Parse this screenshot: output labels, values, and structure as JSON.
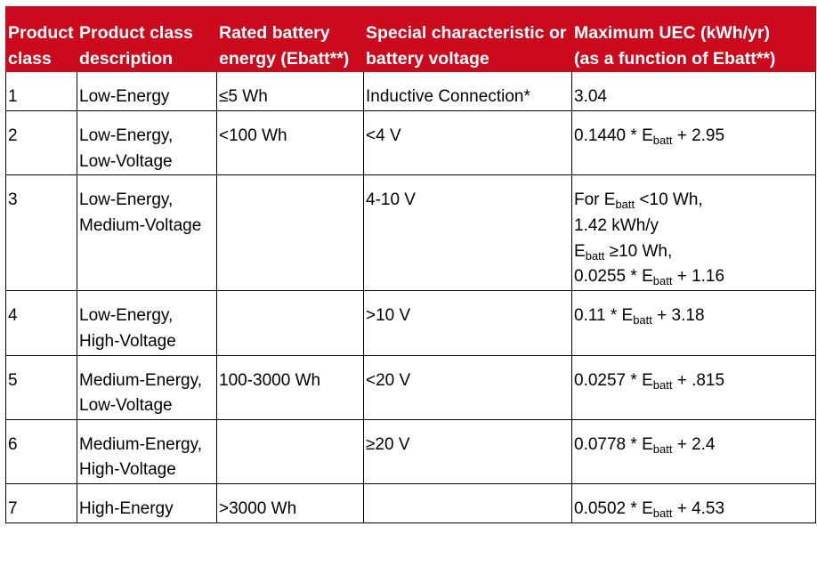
{
  "table": {
    "headers": {
      "product_class": [
        "Product",
        "class"
      ],
      "description": [
        "Product class",
        "description"
      ],
      "rated_energy": [
        "Rated battery",
        "energy (Ebatt**)"
      ],
      "special": [
        "Special characteristic or",
        "battery voltage"
      ],
      "max_uec": [
        "Maximum UEC (kWh/yr)",
        "(as a function of Ebatt**)"
      ]
    },
    "subscript": "batt",
    "rows": [
      {
        "product_class": "1",
        "description": [
          "Low-Energy"
        ],
        "rated_energy": "≤5 Wh",
        "special": "Inductive Connection*",
        "max_uec": "3.04"
      },
      {
        "product_class": "2",
        "description": [
          "Low-Energy,",
          "Low-Voltage"
        ],
        "rated_energy": "<100 Wh",
        "special": "<4 V",
        "max_uec": {
          "prefix": "0.1440 * E",
          "suffix": " + 2.95"
        }
      },
      {
        "product_class": "3",
        "description": [
          "Low-Energy,",
          "Medium-Voltage"
        ],
        "rated_energy": "",
        "special": "4-10 V",
        "max_uec": {
          "line1_prefix": "For E",
          "line1_suffix": " <10 Wh,",
          "line2": "1.42 kWh/y",
          "line3_prefix": "E",
          "line3_suffix": " ≥10 Wh,",
          "line4_prefix": "0.0255 * E",
          "line4_suffix": " + 1.16"
        }
      },
      {
        "product_class": "4",
        "description": [
          "Low-Energy,",
          "High-Voltage"
        ],
        "rated_energy": "",
        "special": ">10 V",
        "max_uec": {
          "prefix": "0.11 * E",
          "suffix": " + 3.18"
        }
      },
      {
        "product_class": "5",
        "description": [
          "Medium-Energy,",
          "Low-Voltage"
        ],
        "rated_energy": "100-3000 Wh",
        "special": "<20 V",
        "max_uec": {
          "prefix": "0.0257 * E",
          "suffix": " + .815"
        }
      },
      {
        "product_class": "6",
        "description": [
          "Medium-Energy,",
          "High-Voltage"
        ],
        "rated_energy": "",
        "special": "≥20 V",
        "max_uec": {
          "prefix": "0.0778 * E",
          "suffix": " + 2.4"
        }
      },
      {
        "product_class": "7",
        "description": [
          "High-Energy"
        ],
        "rated_energy": ">3000 Wh",
        "special": "",
        "max_uec": {
          "prefix": "0.0502 * E",
          "suffix": " + 4.53"
        }
      }
    ]
  }
}
